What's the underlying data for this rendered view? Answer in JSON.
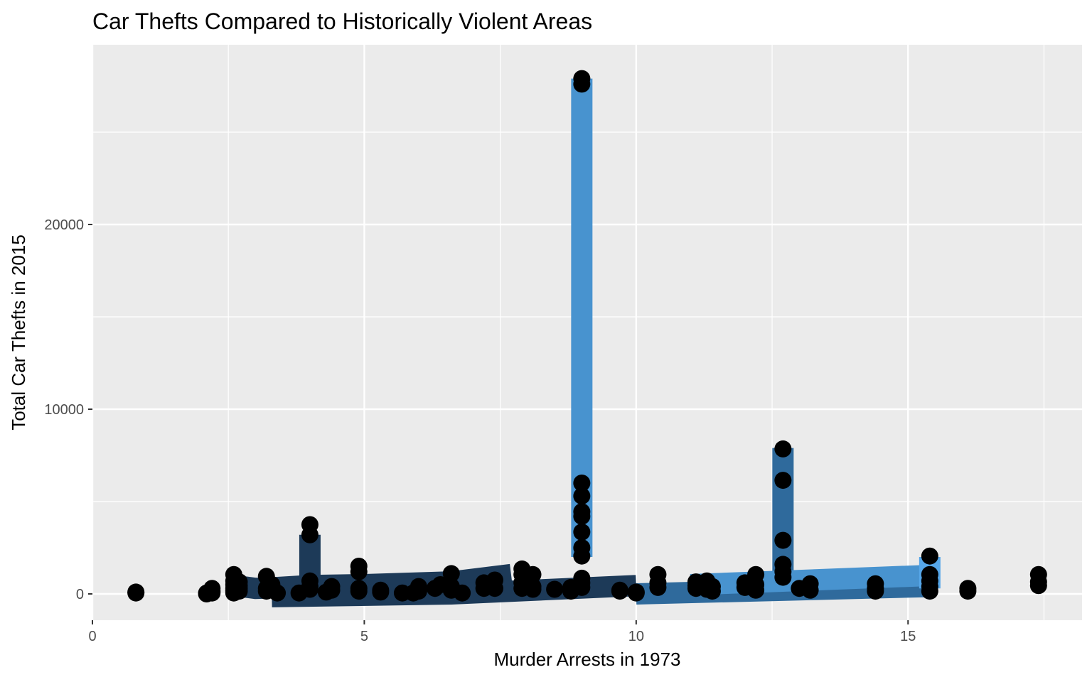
{
  "chart_data": {
    "type": "scatter",
    "title": "Car Thefts Compared to Historically Violent Areas",
    "xlabel": "Murder Arrests in 1973",
    "ylabel": "Total Car Thefts in 2015",
    "xlim": [
      0,
      18
    ],
    "ylim": [
      -1300,
      28800
    ],
    "grid": true,
    "legend": "none",
    "x_ticks": [
      0,
      5,
      10,
      15
    ],
    "y_ticks": [
      0,
      10000,
      20000
    ],
    "x_tick_labels": [
      "0",
      "5",
      "10",
      "15"
    ],
    "y_tick_labels": [
      "0",
      "10000",
      "20000"
    ],
    "colors": {
      "panel_background": "#ebebeb",
      "grid": "#ffffff",
      "point": "#000000",
      "line_dark": "#1d3a58",
      "line_mid": "#2f6a9c",
      "line_light": "#4893cf",
      "line_lightest": "#56a6e8"
    },
    "lines": [
      {
        "color": "#1d3a58",
        "x": [
          2.6,
          3.0,
          3.3,
          4.0,
          5.0,
          6.6,
          7.7
        ],
        "y": [
          450,
          300,
          330,
          450,
          500,
          650,
          1050
        ]
      },
      {
        "color": "#1d3a58",
        "x": [
          3.3,
          6.6,
          10.0
        ],
        "y": [
          -150,
          0,
          450
        ]
      },
      {
        "color": "#1d3a58",
        "x": [
          4.0,
          4.0
        ],
        "y": [
          200,
          3200
        ]
      },
      {
        "color": "#2f6a9c",
        "x": [
          10.0,
          15.4
        ],
        "y": [
          0,
          400
        ]
      },
      {
        "color": "#2f6a9c",
        "x": [
          12.7,
          12.7
        ],
        "y": [
          700,
          7900
        ]
      },
      {
        "color": "#4893cf",
        "x": [
          11.0,
          15.4
        ],
        "y": [
          500,
          1000
        ]
      },
      {
        "color": "#4893cf",
        "x": [
          9.0,
          9.0
        ],
        "y": [
          2000,
          27900
        ]
      },
      {
        "color": "#56a6e8",
        "x": [
          15.4,
          15.4
        ],
        "y": [
          300,
          2000
        ]
      }
    ],
    "series": [
      {
        "points": [
          [
            0.8,
            50
          ],
          [
            0.8,
            100
          ],
          [
            2.1,
            0
          ],
          [
            2.1,
            50
          ],
          [
            2.2,
            50
          ],
          [
            2.2,
            150
          ],
          [
            2.2,
            300
          ],
          [
            2.6,
            150
          ],
          [
            2.6,
            300
          ],
          [
            2.6,
            500
          ],
          [
            2.6,
            700
          ],
          [
            2.6,
            1050
          ],
          [
            2.6,
            50
          ],
          [
            2.6,
            200
          ],
          [
            2.7,
            150
          ],
          [
            2.7,
            300
          ],
          [
            2.7,
            450
          ],
          [
            2.7,
            650
          ],
          [
            3.2,
            150
          ],
          [
            3.2,
            300
          ],
          [
            3.2,
            950
          ],
          [
            3.3,
            300
          ],
          [
            3.3,
            500
          ],
          [
            3.4,
            50
          ],
          [
            3.8,
            50
          ],
          [
            4.0,
            250
          ],
          [
            4.0,
            400
          ],
          [
            4.0,
            700
          ],
          [
            4.0,
            3200
          ],
          [
            4.0,
            3750
          ],
          [
            4.3,
            100
          ],
          [
            4.4,
            200
          ],
          [
            4.4,
            400
          ],
          [
            4.9,
            150
          ],
          [
            4.9,
            300
          ],
          [
            4.9,
            1200
          ],
          [
            4.9,
            1500
          ],
          [
            5.3,
            100
          ],
          [
            5.3,
            200
          ],
          [
            5.7,
            50
          ],
          [
            5.9,
            50
          ],
          [
            6.0,
            150
          ],
          [
            6.0,
            400
          ],
          [
            6.3,
            300
          ],
          [
            6.4,
            500
          ],
          [
            6.6,
            200
          ],
          [
            6.6,
            400
          ],
          [
            6.6,
            1100
          ],
          [
            6.8,
            50
          ],
          [
            7.2,
            300
          ],
          [
            7.2,
            600
          ],
          [
            7.3,
            450
          ],
          [
            7.4,
            300
          ],
          [
            7.4,
            750
          ],
          [
            7.9,
            300
          ],
          [
            7.9,
            600
          ],
          [
            7.9,
            1050
          ],
          [
            7.9,
            1350
          ],
          [
            8.0,
            450
          ],
          [
            8.1,
            400
          ],
          [
            8.1,
            1050
          ],
          [
            8.1,
            250
          ],
          [
            8.5,
            250
          ],
          [
            8.8,
            150
          ],
          [
            8.8,
            350
          ],
          [
            9.0,
            350
          ],
          [
            9.0,
            600
          ],
          [
            9.0,
            850
          ],
          [
            9.0,
            2050
          ],
          [
            9.0,
            2500
          ],
          [
            9.0,
            3350
          ],
          [
            9.0,
            4200
          ],
          [
            9.0,
            4450
          ],
          [
            9.0,
            5300
          ],
          [
            9.0,
            6000
          ],
          [
            9.0,
            27600
          ],
          [
            9.0,
            27900
          ],
          [
            9.7,
            200
          ],
          [
            9.7,
            150
          ],
          [
            10.0,
            50
          ],
          [
            10.0,
            100
          ],
          [
            10.4,
            350
          ],
          [
            10.4,
            600
          ],
          [
            10.4,
            1050
          ],
          [
            11.1,
            300
          ],
          [
            11.1,
            450
          ],
          [
            11.1,
            650
          ],
          [
            11.3,
            250
          ],
          [
            11.3,
            450
          ],
          [
            11.3,
            700
          ],
          [
            11.4,
            150
          ],
          [
            11.4,
            400
          ],
          [
            12.0,
            350
          ],
          [
            12.0,
            600
          ],
          [
            12.2,
            200
          ],
          [
            12.2,
            500
          ],
          [
            12.2,
            1050
          ],
          [
            12.7,
            900
          ],
          [
            12.7,
            1200
          ],
          [
            12.7,
            1600
          ],
          [
            12.7,
            2900
          ],
          [
            12.7,
            6150
          ],
          [
            12.7,
            7850
          ],
          [
            13.0,
            300
          ],
          [
            13.2,
            200
          ],
          [
            13.2,
            550
          ],
          [
            14.4,
            150
          ],
          [
            14.4,
            300
          ],
          [
            14.4,
            550
          ],
          [
            15.4,
            150
          ],
          [
            15.4,
            400
          ],
          [
            15.4,
            700
          ],
          [
            15.4,
            1050
          ],
          [
            15.4,
            2050
          ],
          [
            16.1,
            150
          ],
          [
            16.1,
            300
          ],
          [
            17.4,
            450
          ],
          [
            17.4,
            650
          ],
          [
            17.4,
            1050
          ]
        ]
      }
    ]
  }
}
